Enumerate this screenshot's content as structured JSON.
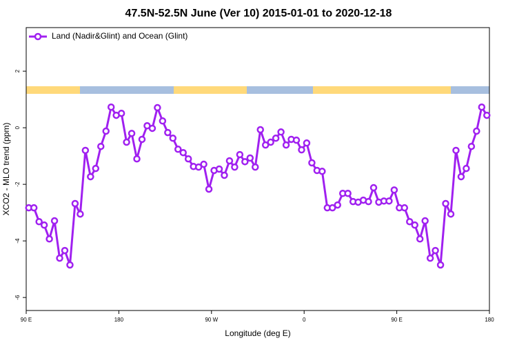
{
  "chart_data": {
    "type": "line",
    "title": "47.5N-52.5N June (Ver 10)   2015-01-01 to 2020-12-18",
    "xlabel": "Longitude (deg E)",
    "ylabel": "XCO2 - MLO trend (ppm)",
    "legend": "top-left",
    "xlim": [
      90,
      540
    ],
    "xticks": [
      {
        "value": 90,
        "label": "90 E"
      },
      180,
      {
        "value": 270,
        "label": "90 W"
      },
      {
        "value": 360,
        "label": "0"
      },
      {
        "value": 450,
        "label": "90 E"
      },
      {
        "value": 540,
        "label": "180"
      }
    ],
    "ylim": [
      -6.46,
      3.54
    ],
    "yticks": [
      -6,
      -4,
      -2,
      0,
      2
    ],
    "x": [
      92.5,
      97.5,
      102.5,
      107.5,
      112.5,
      117.5,
      122.5,
      127.5,
      132.5,
      137.5,
      142.5,
      147.5,
      152.5,
      157.5,
      162.5,
      167.5,
      172.5,
      177.5,
      182.5,
      187.5,
      192.5,
      197.5,
      202.5,
      207.5,
      212.5,
      217.5,
      222.5,
      227.5,
      232.5,
      237.5,
      242.5,
      247.5,
      252.5,
      257.5,
      262.5,
      267.5,
      272.5,
      277.5,
      282.5,
      287.5,
      292.5,
      297.5,
      302.5,
      307.5,
      312.5,
      317.5,
      322.5,
      327.5,
      332.5,
      337.5,
      342.5,
      347.5,
      352.5,
      357.5,
      362.5,
      367.5,
      372.5,
      377.5,
      382.5,
      387.5,
      392.5,
      397.5,
      402.5,
      407.5,
      412.5,
      417.5,
      422.5,
      427.5,
      432.5,
      437.5,
      442.5,
      447.5,
      452.5,
      457.5,
      462.5,
      467.5,
      472.5,
      477.5,
      482.5,
      487.5,
      492.5,
      497.5,
      502.5,
      507.5,
      512.5,
      517.5,
      522.5,
      527.5,
      532.5,
      537.5
    ],
    "series": [
      {
        "name": "Land (Nadir&Glint) and Ocean (Glint)",
        "color": "#a020f0",
        "values": [
          -2.83,
          -2.83,
          -3.32,
          -3.44,
          -3.93,
          -3.29,
          -4.61,
          -4.34,
          -4.85,
          -2.68,
          -3.05,
          -0.8,
          -1.73,
          -1.44,
          -0.66,
          -0.12,
          0.73,
          0.44,
          0.51,
          -0.51,
          -0.2,
          -1.1,
          -0.41,
          0.07,
          -0.02,
          0.71,
          0.24,
          -0.17,
          -0.37,
          -0.76,
          -0.88,
          -1.1,
          -1.37,
          -1.39,
          -1.29,
          -2.17,
          -1.51,
          -1.46,
          -1.68,
          -1.17,
          -1.39,
          -0.95,
          -1.2,
          -1.07,
          -1.39,
          -0.07,
          -0.61,
          -0.51,
          -0.37,
          -0.15,
          -0.61,
          -0.41,
          -0.44,
          -0.78,
          -0.54,
          -1.24,
          -1.51,
          -1.54,
          -2.83,
          -2.83,
          -2.73,
          -2.32,
          -2.32,
          -2.61,
          -2.63,
          -2.56,
          -2.61,
          -2.12,
          -2.63,
          -2.59,
          -2.59,
          -2.2,
          -2.83,
          -2.83,
          -3.32,
          -3.44,
          -3.93,
          -3.29,
          -4.61,
          -4.34,
          -4.85,
          -2.68,
          -3.05,
          -0.8,
          -1.73,
          -1.44,
          -0.66,
          -0.12,
          0.73,
          0.44
        ]
      }
    ]
  }
}
